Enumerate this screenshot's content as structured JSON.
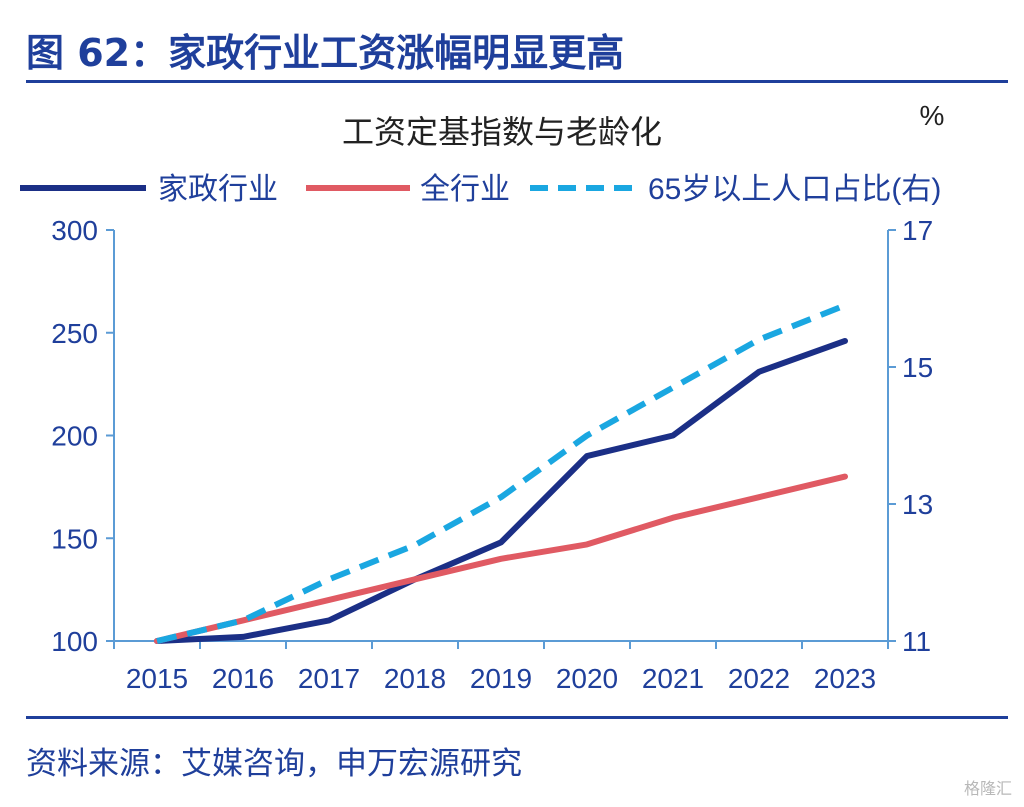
{
  "figure_title": "图 62：家政行业工资涨幅明显更高",
  "source": "资料来源：艾媒咨询，申万宏源研究",
  "watermark": "格隆汇",
  "colors": {
    "header": "#1f3f9b",
    "series_domestic": "#1b2f86",
    "series_all": "#e05a63",
    "series_aging": "#1aa7e1",
    "axis": "#5b9bd5"
  },
  "chart_data": {
    "type": "line",
    "title": "工资定基指数与老龄化",
    "right_unit_label": "%",
    "x": [
      "2015",
      "2016",
      "2017",
      "2018",
      "2019",
      "2020",
      "2021",
      "2022",
      "2023"
    ],
    "ylim": [
      100,
      300
    ],
    "yticks": [
      "100",
      "150",
      "200",
      "250",
      "300"
    ],
    "y2lim": [
      11,
      17
    ],
    "y2ticks": [
      "11",
      "13",
      "15",
      "17"
    ],
    "legend_position": "top",
    "series": [
      {
        "name": "家政行业",
        "axis": "left",
        "style": "solid",
        "color": "#1b2f86",
        "values": [
          100,
          102,
          110,
          130,
          148,
          190,
          200,
          231,
          246
        ]
      },
      {
        "name": "全行业",
        "axis": "left",
        "style": "solid",
        "color": "#e05a63",
        "values": [
          100,
          110,
          120,
          130,
          140,
          147,
          160,
          170,
          180
        ]
      },
      {
        "name": "65岁以上人口占比(右)",
        "axis": "right",
        "style": "dashed",
        "color": "#1aa7e1",
        "values": [
          11.0,
          11.3,
          11.9,
          12.4,
          13.1,
          14.0,
          14.7,
          15.4,
          15.9
        ]
      }
    ]
  }
}
